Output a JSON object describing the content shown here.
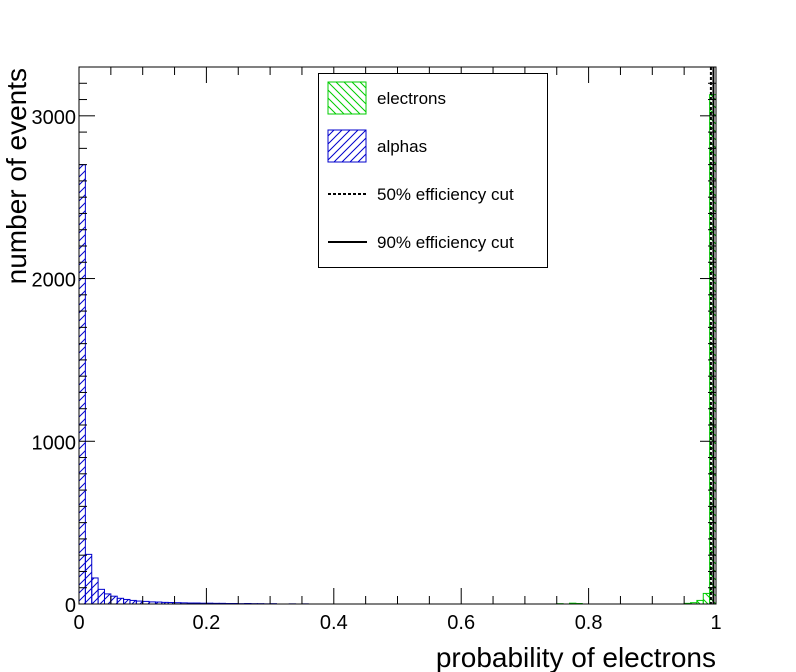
{
  "chart_data": {
    "type": "histogram",
    "xlabel": "probability of electrons",
    "ylabel": "number of events",
    "xlim": [
      0,
      1
    ],
    "ylim": [
      0,
      3300
    ],
    "x_ticks": [
      0,
      0.2,
      0.4,
      0.6,
      0.8,
      1
    ],
    "x_tick_labels": [
      "0",
      "0.2",
      "0.4",
      "0.6",
      "0.8",
      "1"
    ],
    "y_ticks": [
      0,
      1000,
      2000,
      3000
    ],
    "y_tick_labels": [
      "0",
      "1000",
      "2000",
      "3000"
    ],
    "bin_width": 0.01,
    "series": [
      {
        "name": "electrons",
        "color": "#00cc00",
        "hatch": "backslash",
        "bins": [
          {
            "x": 0.75,
            "value": 2
          },
          {
            "x": 0.77,
            "value": 5
          },
          {
            "x": 0.78,
            "value": 3
          },
          {
            "x": 0.95,
            "value": 4
          },
          {
            "x": 0.96,
            "value": 8
          },
          {
            "x": 0.97,
            "value": 22
          },
          {
            "x": 0.98,
            "value": 65
          },
          {
            "x": 0.99,
            "value": 3130
          }
        ]
      },
      {
        "name": "alphas",
        "color": "#0000cc",
        "hatch": "slash",
        "bins": [
          {
            "x": 0.0,
            "value": 2700
          },
          {
            "x": 0.01,
            "value": 305
          },
          {
            "x": 0.02,
            "value": 160
          },
          {
            "x": 0.03,
            "value": 90
          },
          {
            "x": 0.04,
            "value": 62
          },
          {
            "x": 0.05,
            "value": 48
          },
          {
            "x": 0.06,
            "value": 35
          },
          {
            "x": 0.07,
            "value": 28
          },
          {
            "x": 0.08,
            "value": 22
          },
          {
            "x": 0.09,
            "value": 18
          },
          {
            "x": 0.1,
            "value": 16
          },
          {
            "x": 0.11,
            "value": 13
          },
          {
            "x": 0.12,
            "value": 12
          },
          {
            "x": 0.13,
            "value": 10
          },
          {
            "x": 0.14,
            "value": 9
          },
          {
            "x": 0.15,
            "value": 8
          },
          {
            "x": 0.16,
            "value": 7
          },
          {
            "x": 0.17,
            "value": 6
          },
          {
            "x": 0.18,
            "value": 6
          },
          {
            "x": 0.19,
            "value": 5
          },
          {
            "x": 0.2,
            "value": 5
          },
          {
            "x": 0.21,
            "value": 4
          },
          {
            "x": 0.22,
            "value": 4
          },
          {
            "x": 0.23,
            "value": 3
          },
          {
            "x": 0.24,
            "value": 3
          },
          {
            "x": 0.25,
            "value": 2
          },
          {
            "x": 0.26,
            "value": 3
          },
          {
            "x": 0.27,
            "value": 2
          },
          {
            "x": 0.28,
            "value": 2
          },
          {
            "x": 0.29,
            "value": 1
          },
          {
            "x": 0.3,
            "value": 2
          },
          {
            "x": 0.33,
            "value": 1
          },
          {
            "x": 0.35,
            "value": 1
          }
        ]
      }
    ],
    "cut_lines": [
      {
        "name": "50% efficiency cut",
        "x": 0.992,
        "style": "dotted"
      },
      {
        "name": "90% efficiency cut",
        "x": 0.996,
        "style": "solid"
      }
    ]
  },
  "legend": {
    "items": [
      {
        "label": "electrons",
        "color": "#00cc00",
        "swatch": "hatch-backslash"
      },
      {
        "label": "alphas",
        "color": "#0000cc",
        "swatch": "hatch-slash"
      },
      {
        "label": "50% efficiency cut",
        "color": "#000000",
        "swatch": "dotted-line"
      },
      {
        "label": "90% efficiency cut",
        "color": "#000000",
        "swatch": "solid-line"
      }
    ]
  }
}
